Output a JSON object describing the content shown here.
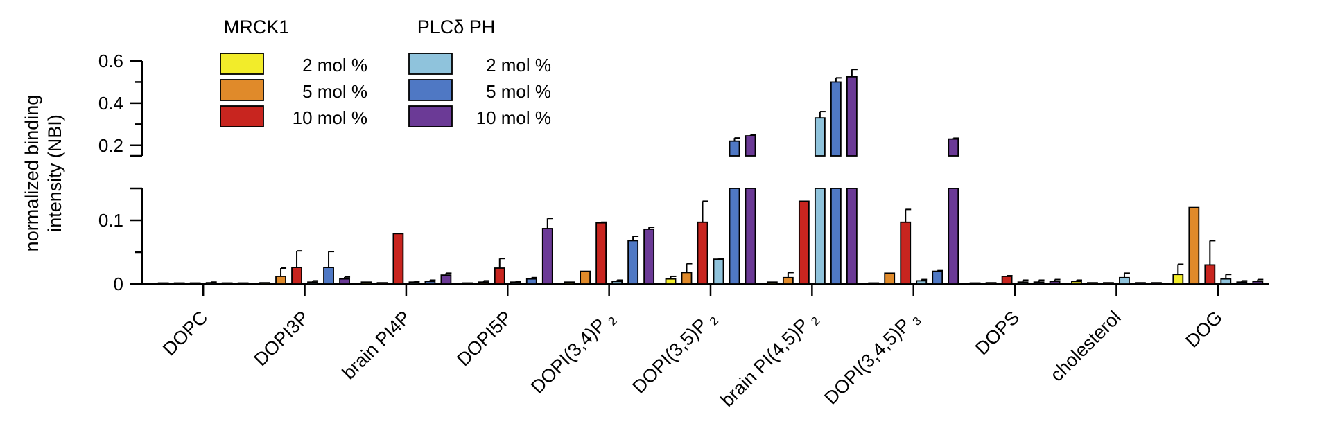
{
  "chart_data": {
    "type": "bar",
    "ylabel": [
      "normalized binding",
      "intensity (NBI)"
    ],
    "categories": [
      {
        "main": "DOPC",
        "sub": ""
      },
      {
        "main": "DOPI3P",
        "sub": ""
      },
      {
        "main": "brain PI4P",
        "sub": ""
      },
      {
        "main": "DOPI5P",
        "sub": ""
      },
      {
        "main": "DOPI(3,4)P",
        "sub": "2"
      },
      {
        "main": "DOPI(3,5)P",
        "sub": "2"
      },
      {
        "main": "brain PI(4,5)P",
        "sub": "2"
      },
      {
        "main": "DOPI(3,4,5)P",
        "sub": "3"
      },
      {
        "main": "DOPS",
        "sub": ""
      },
      {
        "main": "cholesterol",
        "sub": ""
      },
      {
        "main": "DOG",
        "sub": ""
      }
    ],
    "axis_break": {
      "lower_range": [
        0,
        0.15
      ],
      "upper_range": [
        0.15,
        0.6
      ]
    },
    "yticks_lower": [
      "0",
      "0.1"
    ],
    "yticks_upper": [
      "0.2",
      "0.4",
      "0.6"
    ],
    "legend_groups": [
      {
        "title": "MRCK1",
        "entries": [
          {
            "label": "2 mol %",
            "color": "#f2ec2a"
          },
          {
            "label": "5 mol %",
            "color": "#e08a2a"
          },
          {
            "label": "10 mol %",
            "color": "#c8251f"
          }
        ]
      },
      {
        "title": "PLCδ PH",
        "entries": [
          {
            "label": "2 mol %",
            "color": "#8fc3dc"
          },
          {
            "label": "5 mol %",
            "color": "#4f78c4"
          },
          {
            "label": "10 mol %",
            "color": "#6b3a96"
          }
        ]
      }
    ],
    "series": [
      {
        "name": "MRCK1 2 mol %",
        "color": "#f2ec2a",
        "values": [
          0,
          0.002,
          0.003,
          0.001,
          0.003,
          0.008,
          0.003,
          0.001,
          0.001,
          0.004,
          0.015
        ],
        "errors": [
          0,
          0,
          0,
          0,
          0,
          0.004,
          0,
          0,
          0,
          0.002,
          0.016
        ]
      },
      {
        "name": "MRCK1 5 mol %",
        "color": "#e08a2a",
        "values": [
          0,
          0.012,
          0.002,
          0.003,
          0.02,
          0.018,
          0.01,
          0.017,
          0.002,
          0.002,
          0.12
        ],
        "errors": [
          0,
          0.013,
          0,
          0.002,
          0,
          0.014,
          0.008,
          0,
          0,
          0,
          0
        ]
      },
      {
        "name": "MRCK1 10 mol %",
        "color": "#c8251f",
        "values": [
          0,
          0.026,
          0.079,
          0.025,
          0.096,
          0.097,
          0.13,
          0.097,
          0.012,
          0.002,
          0.03
        ],
        "errors": [
          0,
          0.026,
          0,
          0.015,
          0.001,
          0.033,
          0,
          0.02,
          0.001,
          0,
          0.038
        ]
      },
      {
        "name": "PLCδ PH 2 mol %",
        "color": "#8fc3dc",
        "values": [
          0.002,
          0.003,
          0.003,
          0.003,
          0.004,
          0.039,
          0.33,
          0.005,
          0.003,
          0.01,
          0.008
        ],
        "errors": [
          0.001,
          0.002,
          0.001,
          0.001,
          0.002,
          0.001,
          0.03,
          0.002,
          0.003,
          0.007,
          0.007
        ]
      },
      {
        "name": "PLCδ PH 5 mol %",
        "color": "#4f78c4",
        "values": [
          0,
          0.026,
          0.004,
          0.008,
          0.068,
          0.22,
          0.5,
          0.02,
          0.003,
          0.002,
          0.003
        ],
        "errors": [
          0,
          0.025,
          0.002,
          0.002,
          0.007,
          0.015,
          0.02,
          0.001,
          0.003,
          0,
          0.002
        ]
      },
      {
        "name": "PLCδ PH 10 mol %",
        "color": "#6b3a96",
        "values": [
          0,
          0.008,
          0.014,
          0.087,
          0.086,
          0.245,
          0.525,
          0.23,
          0.004,
          0.002,
          0.004
        ],
        "errors": [
          0,
          0.003,
          0.003,
          0.016,
          0.003,
          0.004,
          0.035,
          0.004,
          0.003,
          0,
          0.003
        ]
      }
    ]
  }
}
